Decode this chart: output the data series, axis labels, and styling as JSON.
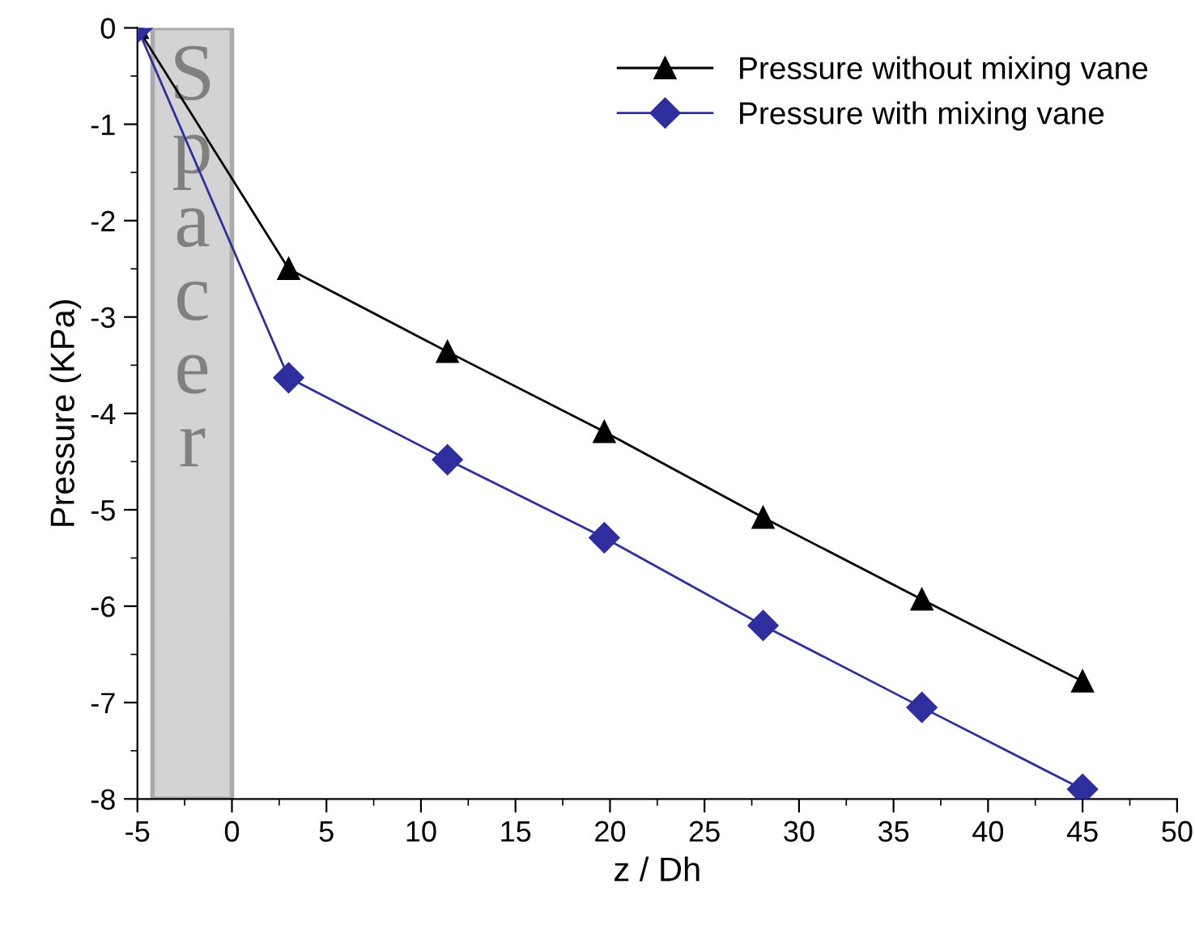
{
  "chart_data": {
    "type": "line",
    "xlabel": "z / Dh",
    "ylabel": "Pressure (KPa)",
    "x": [
      -5,
      3,
      11.4,
      19.7,
      28.1,
      36.5,
      45
    ],
    "series": [
      {
        "name": "Pressure without mixing vane",
        "color": "#000000",
        "marker": "triangle",
        "values": [
          0,
          -2.5,
          -3.36,
          -4.19,
          -5.08,
          -5.93,
          -6.78
        ]
      },
      {
        "name": "Pressure with mixing vane",
        "color": "#2e2e9e",
        "marker": "diamond",
        "values": [
          0,
          -3.63,
          -4.48,
          -5.29,
          -6.2,
          -7.05,
          -7.9
        ]
      }
    ],
    "bands": [
      {
        "axis": "x",
        "from": -4.2,
        "to": 0,
        "label": "Spacer",
        "color": "#d3d3d3"
      }
    ],
    "xlim": [
      -5,
      50
    ],
    "xticks": [
      -5,
      0,
      5,
      10,
      15,
      20,
      25,
      30,
      35,
      40,
      45,
      50
    ],
    "ylim": [
      -8,
      0
    ],
    "yticks": [
      0,
      -1,
      -2,
      -3,
      -4,
      -5,
      -6,
      -7,
      -8
    ],
    "grid": false,
    "legend": "top right",
    "line_style": "solid"
  }
}
